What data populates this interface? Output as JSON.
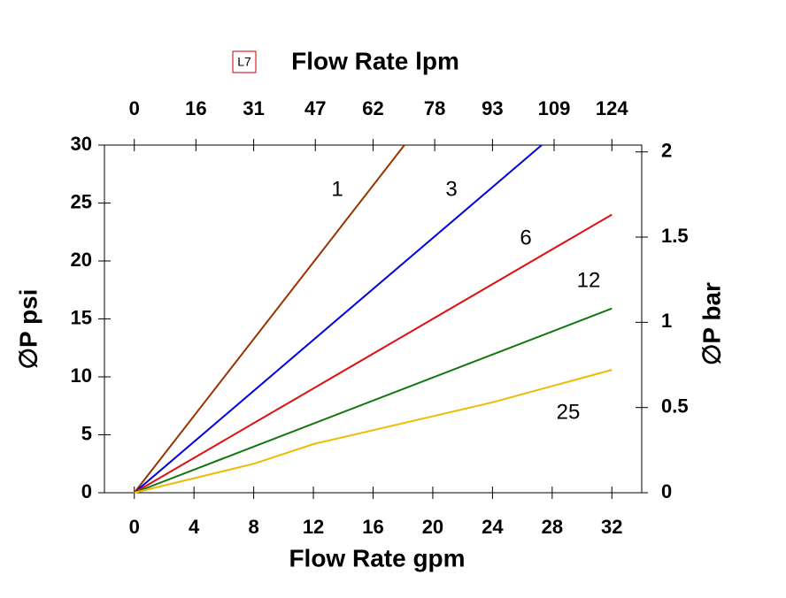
{
  "chart_data": {
    "type": "line",
    "tag": "L7",
    "x_label": "Flow Rate gpm",
    "x2_label": "Flow Rate lpm",
    "y_label": "∅P psi",
    "y2_label": "∅P bar",
    "xlim": [
      -2,
      34
    ],
    "xticks": [
      0,
      4,
      8,
      12,
      16,
      20,
      24,
      28,
      32
    ],
    "x2lim": [
      -7.75,
      131.75
    ],
    "x2ticks": [
      0,
      16,
      31,
      47,
      62,
      78,
      93,
      109,
      124
    ],
    "ylim": [
      0,
      30
    ],
    "yticks": [
      0,
      5,
      10,
      15,
      20,
      25,
      30
    ],
    "y2lim": [
      0,
      2.04
    ],
    "y2ticks": [
      0,
      0.5,
      1,
      1.5,
      2
    ],
    "series": [
      {
        "name": "1",
        "color": "#993300",
        "x": [
          0,
          18.1
        ],
        "values": [
          0,
          30
        ]
      },
      {
        "name": "3",
        "color": "#0000dd",
        "x": [
          0,
          27.3
        ],
        "values": [
          0,
          30
        ]
      },
      {
        "name": "6",
        "color": "#dd1111",
        "x": [
          0,
          8,
          12,
          32
        ],
        "values": [
          0,
          6,
          9,
          24
        ]
      },
      {
        "name": "12",
        "color": "#117711",
        "x": [
          0,
          32
        ],
        "values": [
          0,
          15.9
        ]
      },
      {
        "name": "25",
        "color": "#eebb00",
        "x": [
          0,
          8,
          12,
          24,
          32
        ],
        "values": [
          0,
          2.5,
          4.2,
          7.8,
          10.6
        ]
      }
    ]
  }
}
